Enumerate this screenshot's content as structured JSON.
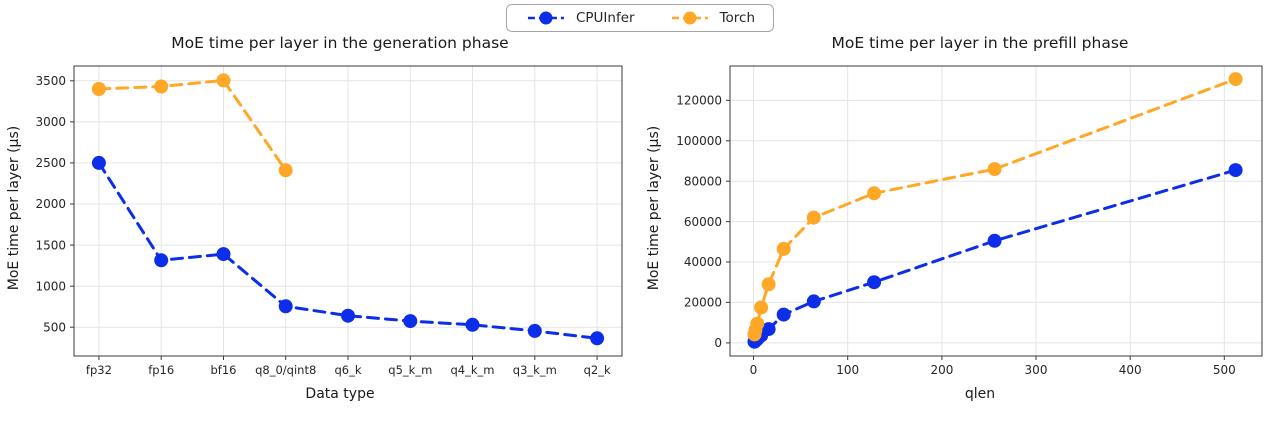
{
  "legend": {
    "position": "top center",
    "items": [
      {
        "label": "CPUInfer",
        "color": "#0c2ee8"
      },
      {
        "label": "Torch",
        "color": "#ffa726"
      }
    ]
  },
  "chart_data": [
    {
      "type": "line",
      "title": "MoE time per layer in the generation phase",
      "xlabel": "Data type",
      "ylabel": "MoE time per layer (µs)",
      "x_type": "categorical",
      "categories": [
        "fp32",
        "fp16",
        "bf16",
        "q8_0/qint8",
        "q6_k",
        "q5_k_m",
        "q4_k_m",
        "q3_k_m",
        "q2_k"
      ],
      "ylim": [
        150,
        3680
      ],
      "yticks": [
        500,
        1000,
        1500,
        2000,
        2500,
        3000,
        3500
      ],
      "grid": true,
      "line_style": "dashed",
      "marker": "circle",
      "margin_left": 46,
      "xtick_font": 11.5,
      "series": [
        {
          "name": "CPUInfer",
          "color": "#0c2ee8",
          "values": [
            2500,
            1315,
            1390,
            755,
            640,
            575,
            530,
            455,
            365
          ]
        },
        {
          "name": "Torch",
          "color": "#ffa726",
          "values": [
            3400,
            3430,
            3505,
            2410,
            null,
            null,
            null,
            null,
            null
          ]
        }
      ]
    },
    {
      "type": "line",
      "title": "MoE time per layer in the prefill phase",
      "xlabel": "qlen",
      "ylabel": "MoE time per layer (µs)",
      "x_type": "numeric",
      "x": [
        1,
        2,
        4,
        8,
        16,
        32,
        64,
        128,
        256,
        512
      ],
      "xlim": [
        -25,
        540
      ],
      "xticks": [
        0,
        100,
        200,
        300,
        400,
        500
      ],
      "ylim": [
        -6500,
        137000
      ],
      "yticks": [
        0,
        20000,
        40000,
        60000,
        80000,
        100000,
        120000
      ],
      "grid": true,
      "line_style": "dashed",
      "marker": "circle",
      "margin_left": 62,
      "xtick_font": 12,
      "series": [
        {
          "name": "CPUInfer",
          "color": "#0c2ee8",
          "values": [
            600,
            1000,
            1900,
            3600,
            6800,
            14000,
            20500,
            30000,
            50500,
            85500
          ]
        },
        {
          "name": "Torch",
          "color": "#ffa726",
          "values": [
            4200,
            6200,
            9500,
            17500,
            29000,
            46500,
            62000,
            74000,
            86000,
            130500
          ]
        }
      ]
    }
  ]
}
